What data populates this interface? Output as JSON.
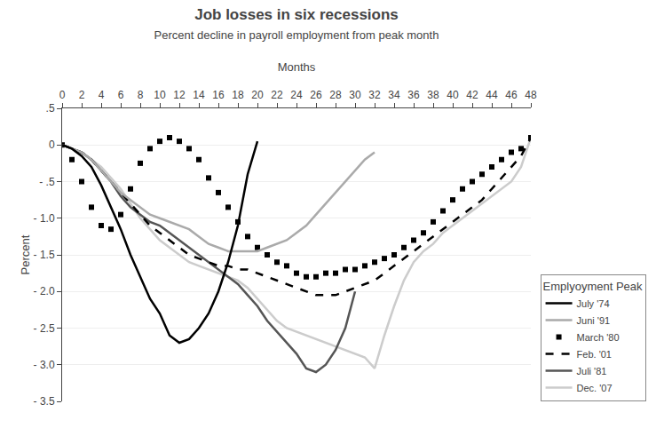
{
  "chart_data": {
    "type": "line",
    "title": "Job losses in six recessions",
    "subtitle": "Percent decline in payroll employment from peak month",
    "x_label": "Months",
    "y_label": "Percent",
    "legend_title": "Emplyoyment Peak",
    "legend": "lower right",
    "grid": "y",
    "xlim": [
      0,
      48
    ],
    "ylim": [
      -3.5,
      0.5
    ],
    "xticks": [
      0,
      2,
      4,
      6,
      8,
      10,
      12,
      14,
      16,
      18,
      20,
      22,
      24,
      26,
      28,
      30,
      32,
      34,
      36,
      38,
      40,
      42,
      44,
      46,
      48
    ],
    "yticks": [
      {
        "value": 0.5,
        "label": ".5"
      },
      0,
      {
        "value": -0.5,
        "label": "- .5"
      },
      {
        "value": -1.0,
        "label": "- 1.0"
      },
      {
        "value": -1.5,
        "label": "- 1.5"
      },
      {
        "value": -2.0,
        "label": "- 2.0"
      },
      {
        "value": -2.5,
        "label": "- 2.5"
      },
      {
        "value": -3.0,
        "label": "- 3.0"
      },
      {
        "value": -3.5,
        "label": "- 3.5"
      }
    ],
    "series": [
      {
        "name": "July '74",
        "color": "#000000",
        "line_style": "solid",
        "x": [
          0,
          1,
          2,
          3,
          4,
          5,
          6,
          7,
          8,
          9,
          10,
          11,
          12,
          13,
          14,
          15,
          16,
          17,
          18,
          19,
          20
        ],
        "values": [
          0.0,
          -0.05,
          -0.15,
          -0.3,
          -0.55,
          -0.85,
          -1.15,
          -1.5,
          -1.8,
          -2.1,
          -2.3,
          -2.6,
          -2.7,
          -2.65,
          -2.5,
          -2.3,
          -2.0,
          -1.6,
          -1.1,
          -0.4,
          0.05
        ]
      },
      {
        "name": "Juni '91",
        "color": "#aaaaaa",
        "line_style": "solid",
        "x": [
          0,
          1,
          2,
          3,
          4,
          5,
          6,
          7,
          8,
          9,
          10,
          11,
          12,
          13,
          14,
          15,
          16,
          17,
          18,
          19,
          20,
          21,
          22,
          23,
          24,
          25,
          26,
          27,
          28,
          29,
          30,
          31,
          32
        ],
        "values": [
          0.0,
          -0.05,
          -0.1,
          -0.2,
          -0.35,
          -0.5,
          -0.65,
          -0.75,
          -0.85,
          -0.95,
          -1.0,
          -1.05,
          -1.1,
          -1.15,
          -1.25,
          -1.35,
          -1.4,
          -1.45,
          -1.45,
          -1.45,
          -1.45,
          -1.4,
          -1.35,
          -1.3,
          -1.2,
          -1.1,
          -0.95,
          -0.8,
          -0.65,
          -0.5,
          -0.35,
          -0.2,
          -0.1
        ]
      },
      {
        "name": "March '80",
        "color": "#000000",
        "line_style": "none",
        "marker": "square",
        "x": [
          0,
          1,
          2,
          3,
          4,
          5,
          6,
          7,
          8,
          9,
          10,
          11,
          12,
          13,
          14,
          15,
          16,
          17,
          18,
          19,
          20,
          21,
          22,
          23,
          24,
          25,
          26,
          27,
          28,
          29,
          30,
          31,
          32,
          33,
          34,
          35,
          36,
          37,
          38,
          39,
          40,
          41,
          42,
          43,
          44,
          45,
          46,
          47,
          48
        ],
        "values": [
          0.0,
          -0.2,
          -0.5,
          -0.85,
          -1.1,
          -1.15,
          -0.95,
          -0.6,
          -0.25,
          -0.05,
          0.05,
          0.1,
          0.05,
          -0.05,
          -0.2,
          -0.45,
          -0.65,
          -0.85,
          -1.05,
          -1.25,
          -1.4,
          -1.5,
          -1.6,
          -1.65,
          -1.75,
          -1.8,
          -1.8,
          -1.75,
          -1.75,
          -1.7,
          -1.7,
          -1.65,
          -1.6,
          -1.55,
          -1.5,
          -1.4,
          -1.3,
          -1.2,
          -1.05,
          -0.9,
          -0.75,
          -0.6,
          -0.5,
          -0.4,
          -0.3,
          -0.2,
          -0.1,
          -0.05,
          0.1
        ]
      },
      {
        "name": "Feb. '01",
        "color": "#000000",
        "line_style": "dashed",
        "x": [
          0,
          1,
          2,
          3,
          4,
          5,
          6,
          7,
          8,
          9,
          10,
          11,
          12,
          13,
          14,
          15,
          16,
          17,
          18,
          19,
          20,
          21,
          22,
          23,
          24,
          25,
          26,
          27,
          28,
          29,
          30,
          31,
          32,
          33,
          34,
          35,
          36,
          37,
          38,
          39,
          40,
          41,
          42,
          43,
          44,
          45,
          46,
          47,
          48
        ],
        "values": [
          0.0,
          -0.05,
          -0.1,
          -0.2,
          -0.35,
          -0.5,
          -0.65,
          -0.8,
          -0.95,
          -1.1,
          -1.2,
          -1.3,
          -1.4,
          -1.5,
          -1.55,
          -1.6,
          -1.65,
          -1.65,
          -1.7,
          -1.7,
          -1.75,
          -1.8,
          -1.85,
          -1.9,
          -1.95,
          -2.0,
          -2.05,
          -2.05,
          -2.05,
          -2.0,
          -1.95,
          -1.9,
          -1.85,
          -1.75,
          -1.65,
          -1.55,
          -1.45,
          -1.35,
          -1.25,
          -1.15,
          -1.05,
          -0.95,
          -0.85,
          -0.75,
          -0.6,
          -0.45,
          -0.3,
          -0.15,
          0.1
        ]
      },
      {
        "name": "Juli '81",
        "color": "#555555",
        "line_style": "solid",
        "x": [
          0,
          1,
          2,
          3,
          4,
          5,
          6,
          7,
          8,
          9,
          10,
          11,
          12,
          13,
          14,
          15,
          16,
          17,
          18,
          19,
          20,
          21,
          22,
          23,
          24,
          25,
          26,
          27,
          28,
          29,
          30
        ],
        "values": [
          0.0,
          -0.05,
          -0.1,
          -0.2,
          -0.35,
          -0.5,
          -0.7,
          -0.85,
          -0.95,
          -1.05,
          -1.1,
          -1.2,
          -1.3,
          -1.4,
          -1.5,
          -1.6,
          -1.7,
          -1.8,
          -1.9,
          -2.05,
          -2.2,
          -2.4,
          -2.55,
          -2.7,
          -2.85,
          -3.05,
          -3.1,
          -3.0,
          -2.8,
          -2.5,
          -2.0
        ]
      },
      {
        "name": "Dec. '07",
        "color": "#cccccc",
        "line_style": "solid",
        "x": [
          0,
          1,
          2,
          3,
          4,
          5,
          6,
          7,
          8,
          9,
          10,
          11,
          12,
          13,
          14,
          15,
          16,
          17,
          18,
          19,
          20,
          21,
          22,
          23,
          24,
          25,
          26,
          27,
          28,
          29,
          30,
          31,
          32,
          33,
          34,
          35,
          36,
          37,
          38,
          39,
          40,
          41,
          42,
          43,
          44,
          45,
          46,
          47,
          48
        ],
        "values": [
          0.0,
          -0.05,
          -0.1,
          -0.2,
          -0.3,
          -0.45,
          -0.6,
          -0.8,
          -1.0,
          -1.15,
          -1.3,
          -1.4,
          -1.5,
          -1.6,
          -1.65,
          -1.7,
          -1.75,
          -1.8,
          -1.85,
          -1.95,
          -2.1,
          -2.25,
          -2.4,
          -2.5,
          -2.55,
          -2.6,
          -2.65,
          -2.7,
          -2.75,
          -2.8,
          -2.85,
          -2.9,
          -3.05,
          -2.6,
          -2.2,
          -1.85,
          -1.6,
          -1.45,
          -1.35,
          -1.2,
          -1.1,
          -1.0,
          -0.9,
          -0.8,
          -0.7,
          -0.6,
          -0.5,
          -0.3,
          0.1
        ]
      }
    ]
  }
}
